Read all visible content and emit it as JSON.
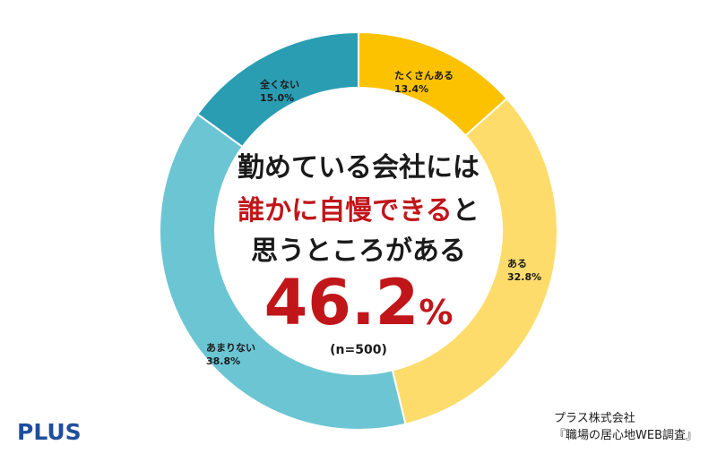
{
  "chart_data": {
    "type": "pie",
    "donut": true,
    "slices": [
      {
        "label": "たくさんある",
        "value": 13.4,
        "value_text": "13.4%",
        "color": "#fcc200"
      },
      {
        "label": "ある",
        "value": 32.8,
        "value_text": "32.8%",
        "color": "#fddc6b"
      },
      {
        "label": "あまりない",
        "value": 38.8,
        "value_text": "38.8%",
        "color": "#6cc5d3"
      },
      {
        "label": "全くない",
        "value": 15.0,
        "value_text": "15.0%",
        "color": "#2a9db3"
      }
    ],
    "center": {
      "line1": "勤めている会社には",
      "line2_red": "誰かに自慢できる",
      "line2_black": "と",
      "line3": "思うところがある",
      "big_number": "46.2",
      "big_unit": "%",
      "sample": "(n=500)"
    }
  },
  "logo": "PLUS",
  "source": {
    "line1": "プラス株式会社",
    "line2": "『職場の居心地WEB調査』"
  }
}
